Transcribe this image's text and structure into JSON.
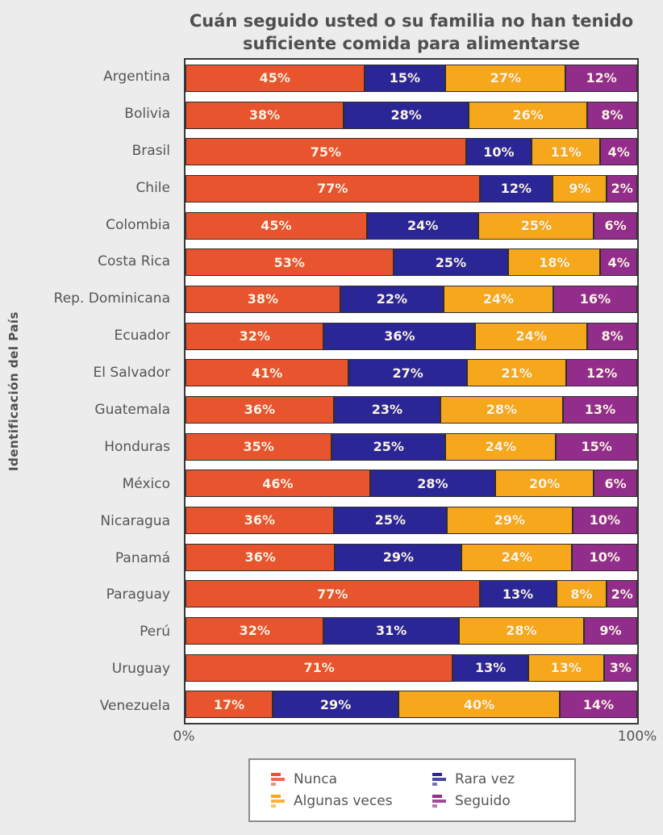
{
  "title": {
    "line1": "Cuán seguido usted o su familia no han tenido",
    "line2": "suficiente comida para alimentarse"
  },
  "y_axis_label": "Identificación del País",
  "x_axis": {
    "min_label": "0%",
    "max_label": "100%"
  },
  "colors": {
    "page_background": "#ECECEC",
    "plot_background": "#FFFFFF",
    "plot_border": "#3A3A3A",
    "text": "#555555",
    "value_label": "#FCF4E6",
    "legend_border": "#8C8C8C"
  },
  "legend": {
    "items": [
      {
        "label": "Nunca",
        "color": "#E8542D"
      },
      {
        "label": "Rara vez",
        "color": "#2B2696"
      },
      {
        "label": "Algunas veces",
        "color": "#F6A71B"
      },
      {
        "label": "Seguido",
        "color": "#932D8C"
      }
    ]
  },
  "chart_data": {
    "type": "bar",
    "orientation": "horizontal",
    "stacked": true,
    "title": "Cuán seguido usted o su familia no han tenido suficiente comida para alimentarse",
    "xlabel": "",
    "ylabel": "Identificación del País",
    "xlim": [
      0,
      100
    ],
    "x_ticks": [
      "0%",
      "100%"
    ],
    "grid": false,
    "legend_position": "bottom",
    "value_suffix": "%",
    "categories": [
      "Argentina",
      "Bolivia",
      "Brasil",
      "Chile",
      "Colombia",
      "Costa Rica",
      "Rep. Dominicana",
      "Ecuador",
      "El Salvador",
      "Guatemala",
      "Honduras",
      "México",
      "Nicaragua",
      "Panamá",
      "Paraguay",
      "Perú",
      "Uruguay",
      "Venezuela"
    ],
    "series": [
      {
        "name": "Nunca",
        "color": "#E8542D",
        "values": [
          45,
          38,
          75,
          77,
          45,
          53,
          38,
          32,
          41,
          36,
          35,
          46,
          36,
          36,
          77,
          32,
          71,
          17
        ]
      },
      {
        "name": "Rara vez",
        "color": "#2B2696",
        "values": [
          15,
          28,
          10,
          12,
          24,
          25,
          22,
          36,
          27,
          23,
          25,
          28,
          25,
          29,
          13,
          31,
          13,
          29
        ]
      },
      {
        "name": "Algunas veces",
        "color": "#F6A71B",
        "values": [
          27,
          26,
          11,
          9,
          25,
          18,
          24,
          24,
          21,
          28,
          24,
          20,
          29,
          24,
          8,
          28,
          13,
          40
        ]
      },
      {
        "name": "Seguido",
        "color": "#932D8C",
        "values": [
          12,
          8,
          4,
          2,
          6,
          4,
          16,
          8,
          12,
          13,
          15,
          6,
          10,
          10,
          2,
          9,
          3,
          14
        ]
      }
    ]
  }
}
